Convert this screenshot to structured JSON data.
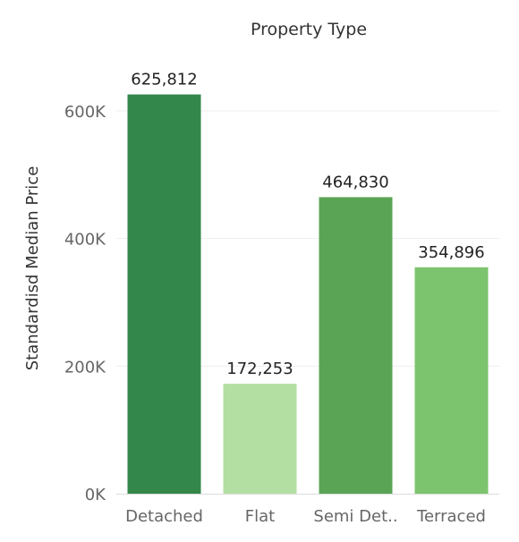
{
  "chart_data": {
    "type": "bar",
    "title": "Property Type",
    "xlabel": "",
    "ylabel": "Standardisd Median Price",
    "categories": [
      "Detached",
      "Flat",
      "Semi Det..",
      "Terraced"
    ],
    "values": [
      625812,
      172253,
      464830,
      354896
    ],
    "data_labels": [
      "625,812",
      "172,253",
      "464,830",
      "354,896"
    ],
    "bar_colors": [
      "#33874a",
      "#b3dfa3",
      "#5aa555",
      "#7dc46e"
    ],
    "ylim": [
      0,
      700000
    ],
    "yticks": [
      0,
      200000,
      400000,
      600000
    ],
    "ytick_labels": [
      "0K",
      "200K",
      "400K",
      "600K"
    ],
    "grid": true,
    "legend": "none"
  }
}
